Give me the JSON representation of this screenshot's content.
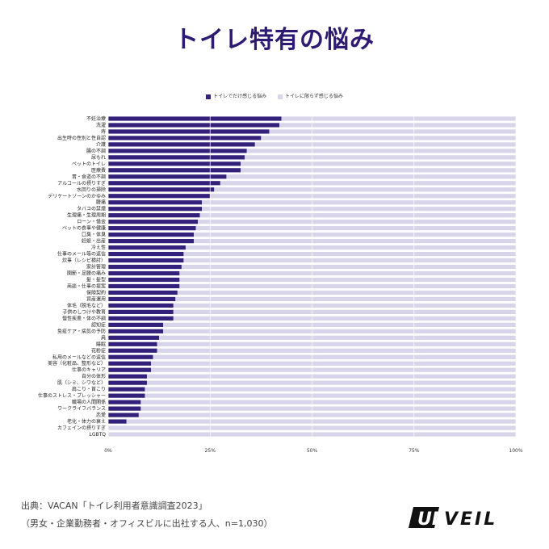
{
  "page": {
    "title": "トイレ特有の悩み",
    "source_line1": "出典：VACAN「トイレ利用者意識調査2023」",
    "source_line2": "（男女・企業勤務者・オフィスビルに出社する人、n=1,030）",
    "logo_text": "UNVEIL"
  },
  "colors": {
    "series_toilet": "#33207a",
    "series_general": "#d8d4ea",
    "title": "#2e1a72"
  },
  "chart_data": {
    "type": "bar",
    "orientation": "horizontal",
    "stacked": true,
    "percent_stacked": true,
    "legend_position": "top",
    "xlim": [
      0,
      100
    ],
    "xticks": [
      "0%",
      "25%",
      "50%",
      "75%",
      "100%"
    ],
    "categories": [
      "不妊治療",
      "洗濯",
      "痔",
      "出生時の性別と性自認",
      "介護",
      "腸の不調",
      "尿もれ",
      "ペットのトイレ",
      "医療費",
      "胃・食道の不調",
      "アルコールの摂りすぎ",
      "水回りの掃除",
      "デリケートゾーンのかゆみ",
      "腰痛",
      "タバコの禁煙",
      "生理痛・生理周期",
      "ローン・借金",
      "ペットの食事や健康",
      "口臭・体臭",
      "妊娠・出産",
      "冷え性",
      "仕事のメール等の返信",
      "炊事（レシピ検討）",
      "家計管理",
      "関節・足腰の痛み",
      "髪・髪型",
      "商談・仕事の提案",
      "保険契約",
      "資産運用",
      "体毛（脱毛など）",
      "子供のしつけや教育",
      "慢性疾患・体の不調",
      "認知症",
      "免疫ケア・病気の予防",
      "肩",
      "睡眠",
      "花粉症",
      "私用のメールなどの返信",
      "美容（化粧品、整形など）",
      "仕事のキャリア",
      "自分の体形",
      "肌（シミ、シワなど）",
      "肩こり・首こり",
      "仕事のストレス・プレッシャー",
      "職場の人間関係",
      "ワークライフバランス",
      "恋愛",
      "老化・体力の衰え",
      "カフェインの摂りすぎ",
      "LGBTQ"
    ],
    "series": [
      {
        "name": "トイレでだけ感じる悩み",
        "values": [
          42.5,
          42.0,
          39.5,
          37.5,
          36.0,
          34.0,
          33.5,
          32.5,
          32.5,
          29.0,
          27.5,
          26.0,
          25.0,
          23.0,
          23.0,
          22.5,
          22.0,
          21.5,
          21.0,
          21.0,
          19.0,
          18.5,
          18.5,
          18.0,
          17.5,
          17.5,
          17.5,
          17.0,
          16.5,
          16.0,
          16.0,
          16.0,
          13.5,
          13.5,
          12.5,
          12.0,
          12.0,
          11.0,
          10.5,
          10.5,
          9.5,
          9.5,
          9.0,
          9.0,
          8.0,
          8.0,
          7.5,
          4.5,
          0,
          0
        ]
      },
      {
        "name": "トイレに限らず感じる悩み",
        "values": [
          57.5,
          58.0,
          60.5,
          62.5,
          64.0,
          66.0,
          66.5,
          67.5,
          67.5,
          71.0,
          72.5,
          74.0,
          75.0,
          77.0,
          77.0,
          77.5,
          78.0,
          78.5,
          79.0,
          79.0,
          81.0,
          81.5,
          81.5,
          82.0,
          82.5,
          82.5,
          82.5,
          83.0,
          83.5,
          84.0,
          84.0,
          84.0,
          86.5,
          86.5,
          87.5,
          88.0,
          88.0,
          89.0,
          89.5,
          89.5,
          90.5,
          90.5,
          91.0,
          91.0,
          92.0,
          92.0,
          92.5,
          95.5,
          100,
          100
        ]
      }
    ]
  }
}
